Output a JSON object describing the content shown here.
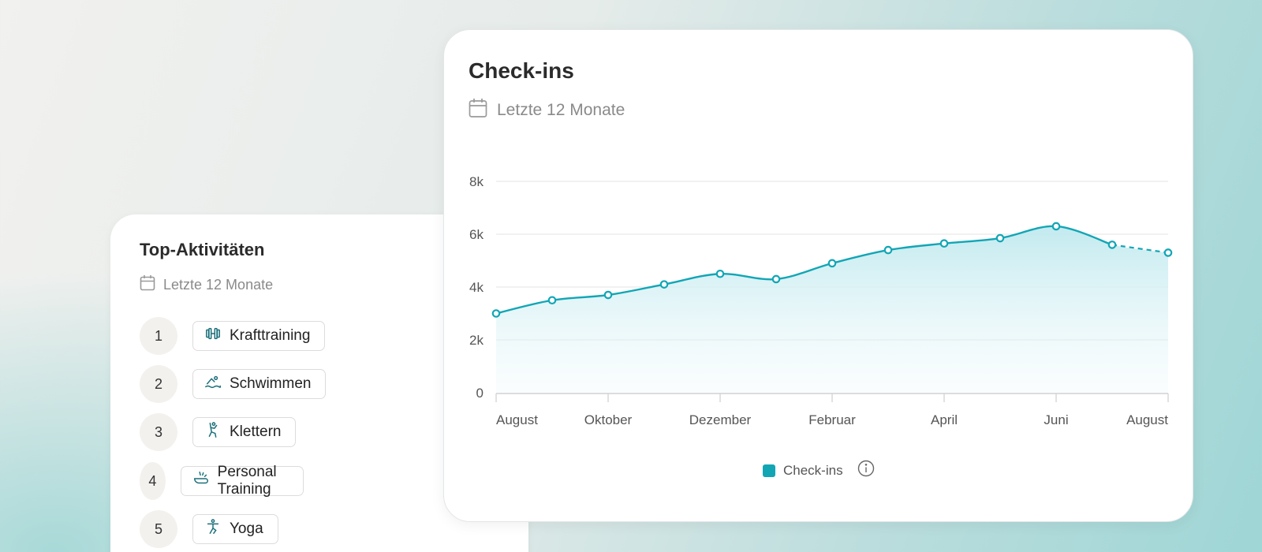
{
  "left_card": {
    "title": "Top-Aktivitäten",
    "subtitle": "Letzte 12 Monate",
    "items": [
      {
        "rank": "1",
        "label": "Krafttraining",
        "icon": "dumbbell-icon"
      },
      {
        "rank": "2",
        "label": "Schwimmen",
        "icon": "swimmer-icon"
      },
      {
        "rank": "3",
        "label": "Klettern",
        "icon": "climber-icon"
      },
      {
        "rank": "4",
        "label": "Personal Training",
        "icon": "whistle-icon"
      },
      {
        "rank": "5",
        "label": "Yoga",
        "icon": "yoga-icon"
      }
    ]
  },
  "main_card": {
    "title": "Check-ins",
    "subtitle": "Letzte 12 Monate",
    "legend_label": "Check-ins"
  },
  "colors": {
    "accent": "#12a6b5",
    "icon": "#1a6f79"
  },
  "chart_data": {
    "type": "area",
    "x_tick_labels": [
      "August",
      "Oktober",
      "Dezember",
      "Februar",
      "April",
      "Juni",
      "August"
    ],
    "y_tick_labels": [
      "0",
      "2k",
      "4k",
      "6k",
      "8k"
    ],
    "ylim": [
      0,
      8000
    ],
    "series": [
      {
        "name": "Check-ins",
        "values": [
          3000,
          3500,
          3700,
          4100,
          4500,
          4300,
          4900,
          5400,
          5650,
          5850,
          6300,
          5600,
          5300
        ],
        "projected_from_index": 11
      }
    ],
    "grid": true,
    "legend_placement": "bottom-center"
  }
}
